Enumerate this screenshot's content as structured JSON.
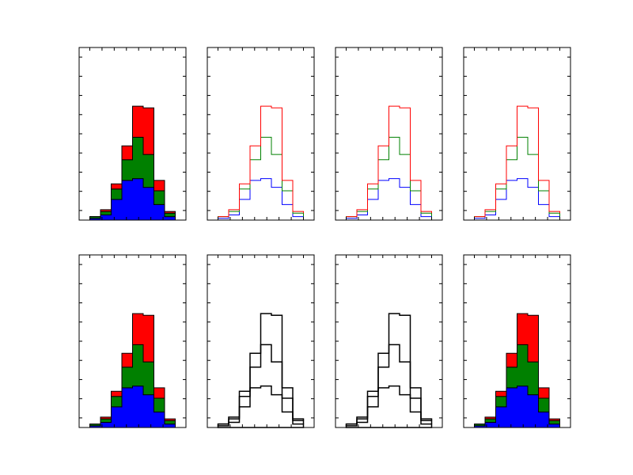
{
  "figure": {
    "layout": {
      "rows": 2,
      "cols": 4
    },
    "axis_defaults": {
      "xlim": [
        0,
        10
      ],
      "ylim": [
        0,
        1
      ],
      "xticks": 8,
      "yticks": 9,
      "grid": false,
      "tick_labels": false
    }
  },
  "colors": {
    "red": "#ff0000",
    "green": "#008000",
    "blue": "#0000ff",
    "black": "#000000"
  },
  "chart_data": [
    {
      "type": "bar",
      "variant": "stacked-filled",
      "row": 0,
      "col": 0,
      "bin_edges": [
        1,
        2,
        3,
        4,
        5,
        6,
        7,
        8,
        9
      ],
      "series": [
        {
          "color": "blue",
          "values": [
            0.01,
            0.03,
            0.12,
            0.23,
            0.24,
            0.19,
            0.09,
            0.02
          ]
        },
        {
          "color": "green",
          "values": [
            0.01,
            0.02,
            0.06,
            0.12,
            0.24,
            0.19,
            0.08,
            0.02
          ]
        },
        {
          "color": "red",
          "values": [
            0.0,
            0.01,
            0.03,
            0.08,
            0.18,
            0.27,
            0.06,
            0.01
          ]
        }
      ]
    },
    {
      "type": "line",
      "variant": "stacked-step",
      "row": 0,
      "col": 1,
      "bin_edges": [
        1,
        2,
        3,
        4,
        5,
        6,
        7,
        8,
        9
      ],
      "series": [
        {
          "color": "blue",
          "values": [
            0.01,
            0.03,
            0.12,
            0.23,
            0.24,
            0.19,
            0.09,
            0.02
          ]
        },
        {
          "color": "green",
          "values": [
            0.01,
            0.02,
            0.06,
            0.12,
            0.24,
            0.19,
            0.08,
            0.02
          ]
        },
        {
          "color": "red",
          "values": [
            0.0,
            0.01,
            0.03,
            0.08,
            0.18,
            0.27,
            0.06,
            0.01
          ]
        }
      ]
    },
    {
      "type": "line",
      "variant": "stacked-step",
      "row": 0,
      "col": 2,
      "bin_edges": [
        1,
        2,
        3,
        4,
        5,
        6,
        7,
        8,
        9
      ],
      "series": [
        {
          "color": "blue",
          "values": [
            0.01,
            0.03,
            0.12,
            0.23,
            0.24,
            0.19,
            0.09,
            0.02
          ]
        },
        {
          "color": "green",
          "values": [
            0.01,
            0.02,
            0.06,
            0.12,
            0.24,
            0.19,
            0.08,
            0.02
          ]
        },
        {
          "color": "red",
          "values": [
            0.0,
            0.01,
            0.03,
            0.08,
            0.18,
            0.27,
            0.06,
            0.01
          ]
        }
      ]
    },
    {
      "type": "line",
      "variant": "stacked-step",
      "row": 0,
      "col": 3,
      "bin_edges": [
        1,
        2,
        3,
        4,
        5,
        6,
        7,
        8,
        9
      ],
      "series": [
        {
          "color": "blue",
          "values": [
            0.01,
            0.03,
            0.12,
            0.23,
            0.24,
            0.19,
            0.09,
            0.02
          ]
        },
        {
          "color": "green",
          "values": [
            0.01,
            0.02,
            0.06,
            0.12,
            0.24,
            0.19,
            0.08,
            0.02
          ]
        },
        {
          "color": "red",
          "values": [
            0.0,
            0.01,
            0.03,
            0.08,
            0.18,
            0.27,
            0.06,
            0.01
          ]
        }
      ]
    },
    {
      "type": "bar",
      "variant": "stacked-filled",
      "row": 1,
      "col": 0,
      "bin_edges": [
        1,
        2,
        3,
        4,
        5,
        6,
        7,
        8,
        9
      ],
      "series": [
        {
          "color": "blue",
          "values": [
            0.01,
            0.03,
            0.12,
            0.23,
            0.24,
            0.19,
            0.09,
            0.02
          ]
        },
        {
          "color": "green",
          "values": [
            0.01,
            0.02,
            0.06,
            0.12,
            0.24,
            0.19,
            0.08,
            0.02
          ]
        },
        {
          "color": "red",
          "values": [
            0.0,
            0.01,
            0.03,
            0.08,
            0.18,
            0.27,
            0.06,
            0.01
          ]
        }
      ]
    },
    {
      "type": "line",
      "variant": "stacked-step",
      "row": 1,
      "col": 1,
      "bin_edges": [
        1,
        2,
        3,
        4,
        5,
        6,
        7,
        8,
        9
      ],
      "series": [
        {
          "color": "black",
          "values": [
            0.01,
            0.03,
            0.12,
            0.23,
            0.24,
            0.19,
            0.09,
            0.02
          ]
        },
        {
          "color": "black",
          "values": [
            0.01,
            0.02,
            0.06,
            0.12,
            0.24,
            0.19,
            0.08,
            0.02
          ]
        },
        {
          "color": "black",
          "values": [
            0.0,
            0.01,
            0.03,
            0.08,
            0.18,
            0.27,
            0.06,
            0.01
          ]
        }
      ]
    },
    {
      "type": "line",
      "variant": "stacked-step",
      "row": 1,
      "col": 2,
      "bin_edges": [
        1,
        2,
        3,
        4,
        5,
        6,
        7,
        8,
        9
      ],
      "series": [
        {
          "color": "black",
          "values": [
            0.01,
            0.03,
            0.12,
            0.23,
            0.24,
            0.19,
            0.09,
            0.02
          ]
        },
        {
          "color": "black",
          "values": [
            0.01,
            0.02,
            0.06,
            0.12,
            0.24,
            0.19,
            0.08,
            0.02
          ]
        },
        {
          "color": "black",
          "values": [
            0.0,
            0.01,
            0.03,
            0.08,
            0.18,
            0.27,
            0.06,
            0.01
          ]
        }
      ]
    },
    {
      "type": "bar",
      "variant": "stacked-filled",
      "row": 1,
      "col": 3,
      "bin_edges": [
        1,
        2,
        3,
        4,
        5,
        6,
        7,
        8,
        9
      ],
      "series": [
        {
          "color": "blue",
          "values": [
            0.01,
            0.03,
            0.12,
            0.23,
            0.24,
            0.19,
            0.09,
            0.02
          ]
        },
        {
          "color": "green",
          "values": [
            0.01,
            0.02,
            0.06,
            0.12,
            0.24,
            0.19,
            0.08,
            0.02
          ]
        },
        {
          "color": "red",
          "values": [
            0.0,
            0.01,
            0.03,
            0.08,
            0.18,
            0.27,
            0.06,
            0.01
          ]
        }
      ]
    }
  ]
}
